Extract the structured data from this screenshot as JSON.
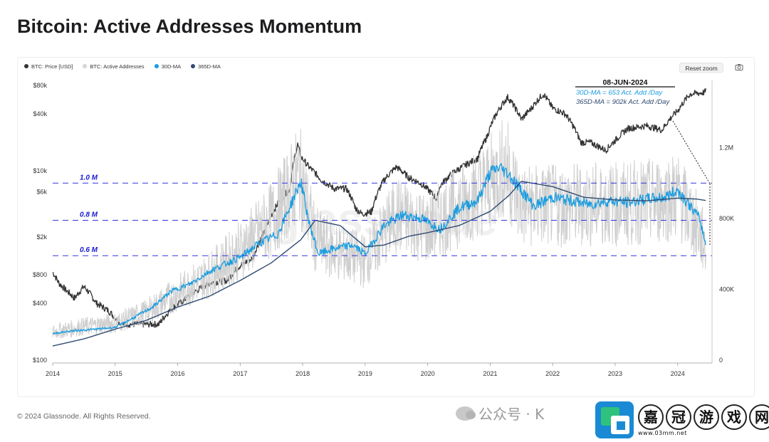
{
  "page": {
    "title": "Bitcoin: Active Addresses Momentum",
    "footer": "© 2024 Glassnode. All Rights Reserved."
  },
  "legend": [
    {
      "label": "BTC: Price [USD]",
      "color": "#333333"
    },
    {
      "label": "BTC: Active Addresses",
      "color": "#d5d5d5"
    },
    {
      "label": "30D-MA",
      "color": "#1a9de0"
    },
    {
      "label": "365D-MA",
      "color": "#2e4a72"
    }
  ],
  "toolbar": {
    "reset_zoom": "Reset zoom",
    "camera_icon": "camera-icon"
  },
  "watermark": {
    "text": "glassnode",
    "source": "公众号 · K"
  },
  "site_logo": {
    "chars": [
      "嘉",
      "冠",
      "游",
      "戏",
      "网"
    ],
    "url": "www.03mm.net"
  },
  "annotation": {
    "date": "08-JUN-2024",
    "line1": "30D-MA = 653 Act. Add /Day",
    "line2": "365D-MA = 902k  Act. Add /Day"
  },
  "chart_data": {
    "type": "line",
    "x_ticks": [
      "2014",
      "2015",
      "2016",
      "2017",
      "2018",
      "2019",
      "2020",
      "2021",
      "2022",
      "2023",
      "2024"
    ],
    "xlim": [
      2014,
      2024.55
    ],
    "y_left": {
      "scale": "log",
      "ticks": [
        "$80k",
        "$40k",
        "$10k",
        "$6k",
        "$2k",
        "$800",
        "$400",
        "$100"
      ],
      "tick_values": [
        80000,
        40000,
        10000,
        6000,
        2000,
        800,
        400,
        100
      ],
      "range": [
        100,
        80000
      ]
    },
    "y_right": {
      "scale": "linear",
      "ticks": [
        "1.2M",
        "800K",
        "400K",
        "0"
      ],
      "tick_values": [
        1200000,
        800000,
        400000,
        0
      ],
      "range": [
        0,
        1600000
      ]
    },
    "reference_lines": [
      {
        "label": "1.0 M",
        "value": 1000000
      },
      {
        "label": "0.8 M",
        "value": 790000
      },
      {
        "label": "0.6 M",
        "value": 590000
      }
    ],
    "series": [
      {
        "name": "BTC: Price [USD]",
        "axis": "left",
        "color": "#333333",
        "x": [
          2014.0,
          2014.1,
          2014.2,
          2014.35,
          2014.5,
          2014.7,
          2014.9,
          2015.0,
          2015.1,
          2015.4,
          2015.7,
          2015.9,
          2016.1,
          2016.5,
          2016.8,
          2017.0,
          2017.2,
          2017.4,
          2017.6,
          2017.8,
          2017.92,
          2017.97,
          2018.1,
          2018.3,
          2018.5,
          2018.7,
          2018.85,
          2018.95,
          2019.1,
          2019.3,
          2019.5,
          2019.7,
          2019.9,
          2020.15,
          2020.2,
          2020.4,
          2020.6,
          2020.8,
          2020.95,
          2021.1,
          2021.28,
          2021.5,
          2021.65,
          2021.85,
          2022.0,
          2022.2,
          2022.45,
          2022.6,
          2022.85,
          2023.0,
          2023.2,
          2023.5,
          2023.75,
          2023.9,
          2024.0,
          2024.2,
          2024.4,
          2024.45
        ],
        "values": [
          850,
          650,
          560,
          450,
          600,
          400,
          330,
          280,
          240,
          240,
          240,
          350,
          430,
          650,
          700,
          1000,
          1200,
          2300,
          4500,
          6500,
          19000,
          14000,
          11000,
          8000,
          6500,
          6500,
          4000,
          3500,
          3700,
          8000,
          11000,
          8500,
          7300,
          5000,
          7000,
          9500,
          11500,
          13500,
          23000,
          40000,
          60000,
          35000,
          45000,
          65000,
          46000,
          40000,
          20000,
          20000,
          16500,
          21000,
          28000,
          30000,
          27000,
          37000,
          43000,
          65000,
          67000,
          69000
        ]
      },
      {
        "name": "BTC: Active Addresses",
        "axis": "right",
        "color": "#cfcfcf",
        "x": [
          2014.0,
          2014.5,
          2015.0,
          2015.5,
          2016.0,
          2016.5,
          2017.0,
          2017.5,
          2017.95,
          2018.2,
          2018.5,
          2019.0,
          2019.5,
          2020.0,
          2020.5,
          2021.0,
          2021.25,
          2021.5,
          2022.0,
          2022.5,
          2023.0,
          2023.5,
          2024.0,
          2024.3,
          2024.45
        ],
        "values": [
          160000,
          190000,
          210000,
          270000,
          380000,
          480000,
          620000,
          790000,
          1050000,
          680000,
          620000,
          560000,
          820000,
          740000,
          870000,
          1000000,
          1100000,
          870000,
          870000,
          880000,
          880000,
          890000,
          930000,
          760000,
          640000
        ]
      },
      {
        "name": "30D-MA",
        "axis": "right",
        "color": "#1a9de0",
        "x": [
          2014.0,
          2014.3,
          2014.7,
          2015.0,
          2015.3,
          2015.6,
          2015.9,
          2016.2,
          2016.5,
          2016.8,
          2017.0,
          2017.3,
          2017.6,
          2017.8,
          2017.97,
          2018.1,
          2018.25,
          2018.5,
          2018.8,
          2019.0,
          2019.3,
          2019.6,
          2019.9,
          2020.2,
          2020.5,
          2020.8,
          2021.0,
          2021.15,
          2021.3,
          2021.5,
          2021.7,
          2022.0,
          2022.3,
          2022.6,
          2022.9,
          2023.2,
          2023.5,
          2023.8,
          2024.0,
          2024.2,
          2024.35,
          2024.45
        ],
        "values": [
          150000,
          165000,
          175000,
          185000,
          240000,
          300000,
          390000,
          430000,
          500000,
          550000,
          580000,
          660000,
          710000,
          870000,
          1010000,
          780000,
          600000,
          630000,
          650000,
          600000,
          760000,
          820000,
          800000,
          740000,
          860000,
          900000,
          1060000,
          1090000,
          1050000,
          960000,
          870000,
          920000,
          900000,
          880000,
          900000,
          890000,
          910000,
          920000,
          960000,
          870000,
          800000,
          653000
        ]
      },
      {
        "name": "365D-MA",
        "axis": "right",
        "color": "#2e4a72",
        "x": [
          2014.0,
          2014.5,
          2015.0,
          2015.5,
          2016.0,
          2016.5,
          2017.0,
          2017.5,
          2017.97,
          2018.2,
          2018.6,
          2019.0,
          2019.3,
          2019.7,
          2020.0,
          2020.5,
          2021.0,
          2021.3,
          2021.5,
          2022.0,
          2022.5,
          2023.0,
          2023.5,
          2024.0,
          2024.3,
          2024.45
        ],
        "values": [
          80000,
          120000,
          175000,
          225000,
          300000,
          360000,
          450000,
          550000,
          680000,
          790000,
          760000,
          640000,
          650000,
          700000,
          720000,
          760000,
          840000,
          930000,
          1010000,
          980000,
          920000,
          905000,
          900000,
          915000,
          910000,
          902000
        ]
      }
    ]
  }
}
